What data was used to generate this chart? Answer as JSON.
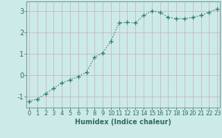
{
  "x": [
    0,
    1,
    2,
    3,
    4,
    5,
    6,
    7,
    8,
    9,
    10,
    11,
    12,
    13,
    14,
    15,
    16,
    17,
    18,
    19,
    20,
    21,
    22,
    23
  ],
  "y": [
    -1.2,
    -1.1,
    -0.85,
    -0.6,
    -0.35,
    -0.2,
    -0.05,
    0.15,
    0.85,
    1.05,
    1.6,
    2.45,
    2.47,
    2.45,
    2.8,
    3.0,
    2.95,
    2.7,
    2.65,
    2.65,
    2.7,
    2.8,
    2.95,
    3.1
  ],
  "line_color": "#2e7d6e",
  "marker": "+",
  "marker_size": 4,
  "linewidth": 1.0,
  "xlabel": "Humidex (Indice chaleur)",
  "xlabel_fontsize": 7,
  "xlabel_color": "#2e6b60",
  "yticks": [
    -1,
    0,
    1,
    2,
    3
  ],
  "xticks": [
    0,
    1,
    2,
    3,
    4,
    5,
    6,
    7,
    8,
    9,
    10,
    11,
    12,
    13,
    14,
    15,
    16,
    17,
    18,
    19,
    20,
    21,
    22,
    23
  ],
  "ylim": [
    -1.5,
    3.45
  ],
  "xlim": [
    -0.3,
    23.3
  ],
  "background_color": "#cceae8",
  "grid_color": "#c8b8b8",
  "tick_color": "#2e6b60",
  "tick_fontsize": 6,
  "spine_color": "#7a9a98"
}
